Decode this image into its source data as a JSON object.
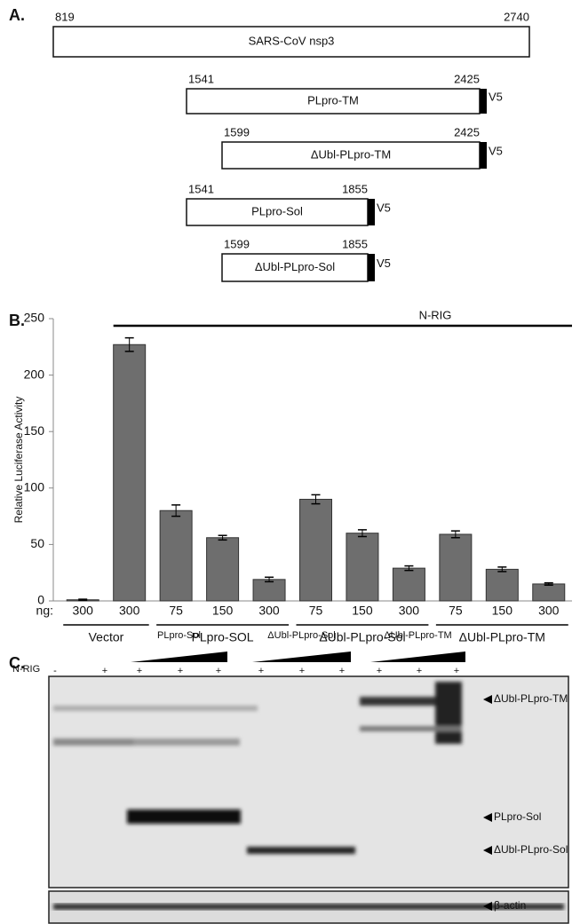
{
  "panel_a": {
    "label": "A.",
    "constructs": [
      {
        "start": 819,
        "end": 2740,
        "name": "SARS-CoV nsp3"
      },
      {
        "start": 1541,
        "end": 2425,
        "name": "PLpro-TM",
        "tag": "V5"
      },
      {
        "start": 1599,
        "end": 2425,
        "name": "ΔUbl-PLpro-TM",
        "tag": "V5"
      },
      {
        "start": 1541,
        "end": 1855,
        "name": "PLpro-Sol",
        "tag": "V5"
      },
      {
        "start": 1599,
        "end": 1855,
        "name": "ΔUbl-PLpro-Sol",
        "tag": "V5"
      }
    ]
  },
  "chart_data": {
    "type": "bar",
    "label": "B.",
    "ylabel": "Relative Luciferase Activity",
    "x_label": "ng:",
    "categories": [
      "300",
      "300",
      "75",
      "150",
      "300",
      "75",
      "150",
      "300",
      "75",
      "150",
      "300"
    ],
    "values": [
      1,
      227,
      80,
      56,
      19,
      90,
      60,
      29,
      59,
      28,
      15
    ],
    "errors": [
      0.5,
      6,
      5,
      2,
      2,
      4,
      3,
      2,
      3,
      2,
      1
    ],
    "groups": [
      {
        "name": "Vector",
        "count": 2
      },
      {
        "name": "PLpro-SOL",
        "count": 3
      },
      {
        "name": "ΔUbl-PLpro-Sol",
        "count": 3
      },
      {
        "name": "ΔUbl-PLpro-TM",
        "count": 3
      }
    ],
    "annotation": "N-RIG",
    "color": "#6e6e6e",
    "ylim": [
      0,
      250
    ],
    "yticks": [
      0,
      50,
      100,
      150,
      200,
      250
    ]
  },
  "panel_c": {
    "label": "C.",
    "row_label": "N-RIG",
    "lanes": [
      "-",
      "+",
      "+",
      "+",
      "+",
      "+",
      "+",
      "+",
      "+",
      "+",
      "+"
    ],
    "groups": [
      "PLpro-Sol",
      "ΔUbl-PLpro-Sol",
      "ΔUbl-PLpro-TM"
    ],
    "markers": [
      "ΔUbl-PLpro-TM",
      "PLpro-Sol",
      "ΔUbl-PLpro-Sol",
      "β-actin"
    ]
  }
}
